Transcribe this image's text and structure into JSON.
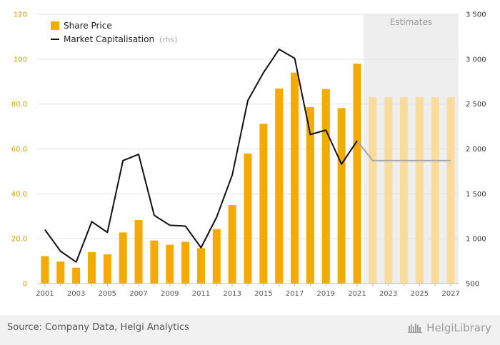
{
  "chart_data": {
    "type": "bar",
    "categories": [
      "2001",
      "2002",
      "2003",
      "2004",
      "2005",
      "2006",
      "2007",
      "2008",
      "2009",
      "2010",
      "2011",
      "2012",
      "2013",
      "2014",
      "2015",
      "2016",
      "2017",
      "2018",
      "2019",
      "2020",
      "2021",
      "2022",
      "2023",
      "2024",
      "2025",
      "2026",
      "2027"
    ],
    "x_tick_labels": [
      "2001",
      "2003",
      "2005",
      "2007",
      "2009",
      "2011",
      "2013",
      "2015",
      "2017",
      "2019",
      "2021",
      "2023",
      "2025",
      "2027"
    ],
    "series": [
      {
        "name": "Share Price",
        "type": "bar",
        "axis": "left",
        "color": "#f5aa00",
        "estimate_color": "#f7dc9c",
        "values": [
          12.2,
          9.8,
          7.1,
          14.0,
          13.0,
          22.8,
          28.3,
          19.2,
          17.3,
          18.6,
          15.8,
          24.3,
          35.0,
          58.0,
          71.2,
          86.9,
          94.0,
          78.6,
          86.7,
          78.2,
          98.0,
          83.0,
          83.0,
          83.0,
          83.0,
          83.0,
          83.0
        ]
      },
      {
        "name": "Market Capitalisation",
        "axis_note": "(rhs)",
        "type": "line",
        "axis": "right",
        "color": "#111111",
        "estimate_color": "#a8a8a8",
        "values": [
          1100,
          860,
          740,
          1190,
          1070,
          1870,
          1940,
          1260,
          1150,
          1140,
          900,
          1240,
          1710,
          2540,
          2850,
          3110,
          3010,
          2160,
          2210,
          1830,
          2090,
          1870,
          1870,
          1870,
          1870,
          1870,
          1870
        ]
      }
    ],
    "estimate_start": "2022",
    "estimate_label": "Estimates",
    "ylim_left": [
      0,
      120
    ],
    "yticks_left": [
      "0",
      "20.0",
      "40.0",
      "60.0",
      "80.0",
      "100",
      "120"
    ],
    "ylim_right": [
      500,
      3500
    ],
    "yticks_right": [
      "500",
      "1 000",
      "1 500",
      "2 000",
      "2 500",
      "3 000",
      "3 500"
    ],
    "grid": true,
    "legend_position": "top-left"
  },
  "footer": {
    "source": "Source: Company Data, Helgi Analytics",
    "logo_text": "HelgiLibrary"
  }
}
